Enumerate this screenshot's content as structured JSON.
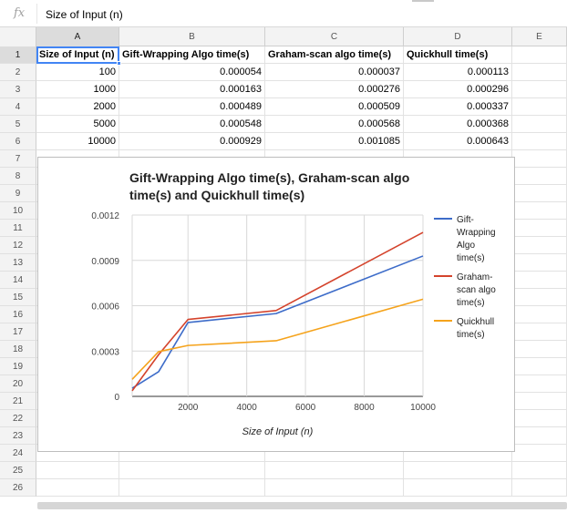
{
  "formula_bar": {
    "icon": "fx-icon",
    "content": "Size of Input (n)"
  },
  "columns": [
    "A",
    "B",
    "C",
    "D",
    "E"
  ],
  "rows": [
    "1",
    "2",
    "3",
    "4",
    "5",
    "6",
    "7",
    "8",
    "9",
    "10",
    "11",
    "12",
    "13",
    "14",
    "15",
    "16",
    "17",
    "18",
    "19",
    "20",
    "21",
    "22",
    "23",
    "24",
    "25",
    "26"
  ],
  "table": {
    "headers": [
      "Size of Input (n)",
      "Gift-Wrapping Algo time(s)",
      "Graham-scan algo time(s)",
      "Quickhull time(s)"
    ],
    "rows": [
      [
        "100",
        "0.000054",
        "0.000037",
        "0.000113"
      ],
      [
        "1000",
        "0.000163",
        "0.000276",
        "0.000296"
      ],
      [
        "2000",
        "0.000489",
        "0.000509",
        "0.000337"
      ],
      [
        "5000",
        "0.000548",
        "0.000568",
        "0.000368"
      ],
      [
        "10000",
        "0.000929",
        "0.001085",
        "0.000643"
      ]
    ]
  },
  "chart_data": {
    "type": "line",
    "title_lines": [
      "Gift-Wrapping Algo time(s), Graham-scan algo",
      "time(s) and Quickhull time(s)"
    ],
    "xlabel": "Size of Input (n)",
    "ylabel": "",
    "x": [
      100,
      1000,
      2000,
      5000,
      10000
    ],
    "xlim": [
      100,
      10000
    ],
    "ylim": [
      0,
      0.0012
    ],
    "x_ticks": [
      2000,
      4000,
      6000,
      8000,
      10000
    ],
    "x_tick_labels": [
      "2000",
      "4000",
      "6000",
      "8000",
      "10000"
    ],
    "y_ticks": [
      0,
      0.0003,
      0.0006,
      0.0009,
      0.0012
    ],
    "y_tick_labels": [
      "0",
      "0.0003",
      "0.0006",
      "0.0009",
      "0.0012"
    ],
    "grid": true,
    "legend_position": "right",
    "series": [
      {
        "name": "Gift-Wrapping Algo time(s)",
        "legend_lines": [
          "Gift-",
          "Wrapping",
          "Algo",
          "time(s)"
        ],
        "color": "#3d6cc9",
        "values": [
          5.4e-05,
          0.000163,
          0.000489,
          0.000548,
          0.000929
        ]
      },
      {
        "name": "Graham-scan algo time(s)",
        "legend_lines": [
          "Graham-",
          "scan algo",
          "time(s)"
        ],
        "color": "#d4432c",
        "values": [
          3.7e-05,
          0.000276,
          0.000509,
          0.000568,
          0.001085
        ]
      },
      {
        "name": "Quickhull time(s)",
        "legend_lines": [
          "Quickhull",
          "time(s)"
        ],
        "color": "#f5a31c",
        "values": [
          0.000113,
          0.000296,
          0.000337,
          0.000368,
          0.000643
        ]
      }
    ]
  },
  "colors": {
    "selection": "#4285f4",
    "header_bg": "#f3f3f3",
    "grid_line": "#e2e2e2"
  }
}
